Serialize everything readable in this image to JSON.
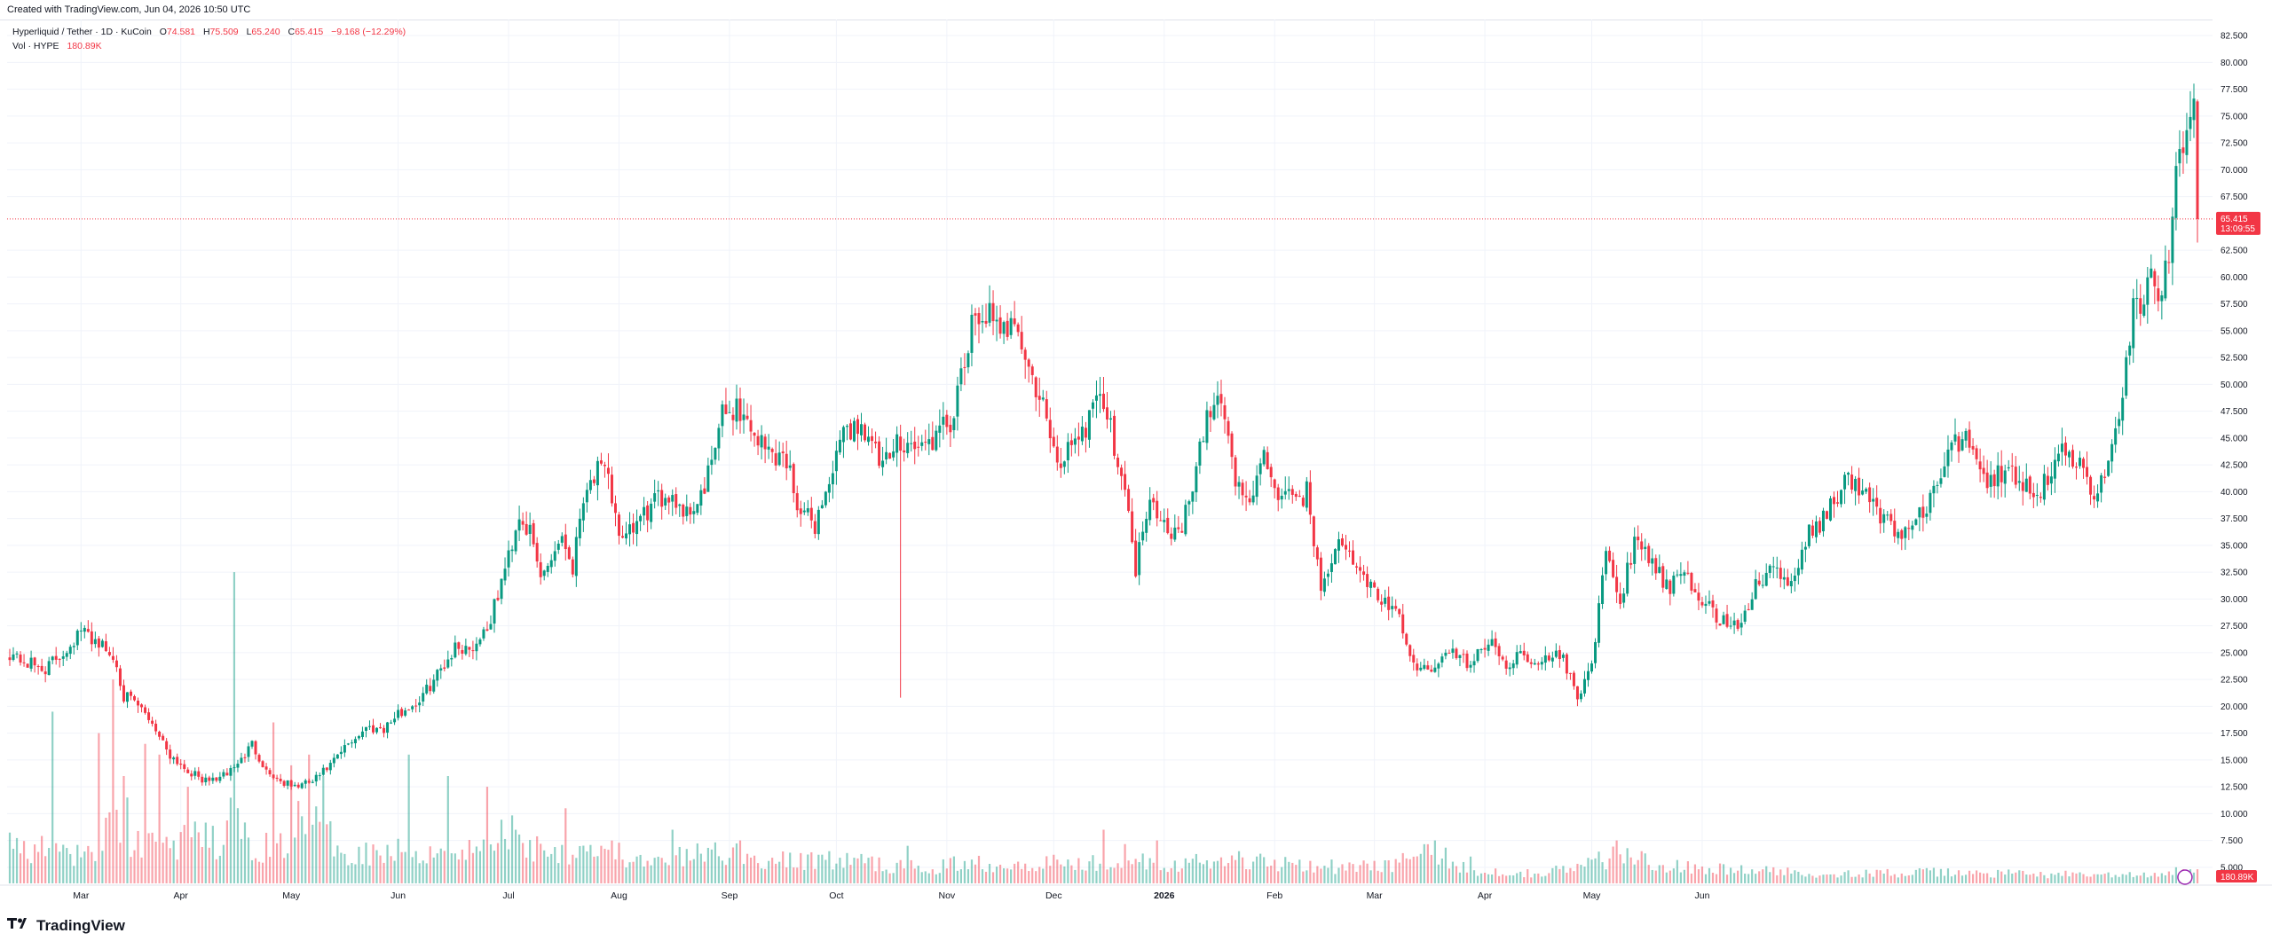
{
  "header": {
    "created": "Created with TradingView.com, Jun 04, 2026 10:50 UTC"
  },
  "legend": {
    "symbol": "Hyperliquid / Tether · 1D · KuCoin",
    "open_label": "O",
    "open": "74.581",
    "high_label": "H",
    "high": "75.509",
    "low_label": "L",
    "low": "65.240",
    "close_label": "C",
    "close": "65.415",
    "change": "−9.168 (−12.29%)",
    "volume_label": "Vol · HYPE",
    "volume": "180.89K"
  },
  "price_badge": {
    "price": "65.415",
    "countdown": "13:09:55"
  },
  "volume_badge": "180.89K",
  "footer": {
    "brand": "TradingView"
  },
  "colors": {
    "up": "#089981",
    "down": "#f23645",
    "grid": "#f0f3fa",
    "text": "#131722"
  },
  "chart_data": {
    "type": "candlestick",
    "title": "Hyperliquid / Tether · 1D · KuCoin",
    "ylim": [
      3.5,
      84
    ],
    "y_ticks": [
      "82.500",
      "80.000",
      "77.500",
      "75.000",
      "72.500",
      "70.000",
      "67.500",
      "62.500",
      "60.000",
      "57.500",
      "55.000",
      "52.500",
      "50.000",
      "47.500",
      "45.000",
      "42.500",
      "40.000",
      "37.500",
      "35.000",
      "32.500",
      "30.000",
      "27.500",
      "25.000",
      "22.500",
      "20.000",
      "17.500",
      "15.000",
      "12.500",
      "10.000",
      "7.500",
      "5.000"
    ],
    "x_ticks": [
      "Mar",
      "Apr",
      "May",
      "Jun",
      "Jul",
      "Aug",
      "Sep",
      "Oct",
      "Nov",
      "Dec",
      "2026",
      "Feb",
      "Mar",
      "Apr",
      "May",
      "Jun"
    ],
    "last_price": 65.415,
    "price_anchors": [
      [
        0,
        25
      ],
      [
        5,
        24
      ],
      [
        10,
        23.5
      ],
      [
        15,
        25
      ],
      [
        20,
        27
      ],
      [
        25,
        26
      ],
      [
        30,
        24
      ],
      [
        32,
        21
      ],
      [
        36,
        20
      ],
      [
        40,
        18.5
      ],
      [
        45,
        15.5
      ],
      [
        50,
        14
      ],
      [
        55,
        13
      ],
      [
        60,
        13.5
      ],
      [
        65,
        15
      ],
      [
        68,
        16.5
      ],
      [
        72,
        14
      ],
      [
        76,
        13
      ],
      [
        80,
        12.5
      ],
      [
        85,
        13
      ],
      [
        90,
        14.5
      ],
      [
        95,
        16.5
      ],
      [
        100,
        18
      ],
      [
        105,
        18
      ],
      [
        110,
        19.5
      ],
      [
        115,
        20.5
      ],
      [
        120,
        23
      ],
      [
        125,
        25.5
      ],
      [
        130,
        25.5
      ],
      [
        135,
        28
      ],
      [
        140,
        34
      ],
      [
        143,
        38
      ],
      [
        146,
        36
      ],
      [
        149,
        32
      ],
      [
        152,
        34
      ],
      [
        155,
        36
      ],
      [
        158,
        33
      ],
      [
        161,
        40
      ],
      [
        165,
        42
      ],
      [
        168,
        41
      ],
      [
        172,
        35
      ],
      [
        176,
        37
      ],
      [
        180,
        38.5
      ],
      [
        185,
        40
      ],
      [
        190,
        38
      ],
      [
        195,
        40
      ],
      [
        200,
        47
      ],
      [
        204,
        48
      ],
      [
        208,
        46
      ],
      [
        212,
        44
      ],
      [
        218,
        43
      ],
      [
        222,
        38
      ],
      [
        226,
        37
      ],
      [
        230,
        41
      ],
      [
        235,
        46
      ],
      [
        240,
        46
      ],
      [
        245,
        42
      ],
      [
        250,
        45
      ],
      [
        255,
        44
      ],
      [
        260,
        45
      ],
      [
        265,
        47
      ],
      [
        270,
        55
      ],
      [
        274,
        57
      ],
      [
        278,
        54
      ],
      [
        282,
        57
      ],
      [
        286,
        51
      ],
      [
        290,
        48
      ],
      [
        294,
        42
      ],
      [
        298,
        45
      ],
      [
        302,
        46
      ],
      [
        305,
        50
      ],
      [
        308,
        47
      ],
      [
        312,
        42
      ],
      [
        316,
        33
      ],
      [
        320,
        40
      ],
      [
        324,
        37
      ],
      [
        328,
        36
      ],
      [
        332,
        40
      ],
      [
        336,
        47
      ],
      [
        340,
        49
      ],
      [
        344,
        41
      ],
      [
        348,
        39
      ],
      [
        352,
        43
      ],
      [
        356,
        40
      ],
      [
        360,
        39
      ],
      [
        364,
        40
      ],
      [
        368,
        31
      ],
      [
        372,
        35
      ],
      [
        376,
        34
      ],
      [
        380,
        32
      ],
      [
        385,
        30
      ],
      [
        390,
        28
      ],
      [
        395,
        23
      ],
      [
        400,
        24
      ],
      [
        405,
        25
      ],
      [
        410,
        24
      ],
      [
        415,
        26
      ],
      [
        420,
        24
      ],
      [
        425,
        25
      ],
      [
        430,
        24
      ],
      [
        435,
        25
      ],
      [
        440,
        21
      ],
      [
        444,
        24
      ],
      [
        448,
        34
      ],
      [
        452,
        30
      ],
      [
        456,
        35
      ],
      [
        460,
        34
      ],
      [
        465,
        31
      ],
      [
        470,
        32
      ],
      [
        475,
        30
      ],
      [
        480,
        28
      ],
      [
        485,
        27.5
      ],
      [
        490,
        31
      ],
      [
        495,
        33
      ],
      [
        500,
        31
      ],
      [
        505,
        36
      ],
      [
        510,
        38
      ],
      [
        515,
        41
      ],
      [
        520,
        40
      ],
      [
        525,
        38
      ],
      [
        530,
        36
      ],
      [
        535,
        37
      ],
      [
        540,
        40
      ],
      [
        545,
        44
      ],
      [
        550,
        45
      ],
      [
        555,
        41
      ],
      [
        560,
        42
      ],
      [
        565,
        41
      ],
      [
        570,
        40
      ],
      [
        575,
        44
      ],
      [
        580,
        43
      ],
      [
        585,
        39
      ],
      [
        590,
        44
      ],
      [
        593,
        49
      ],
      [
        596,
        58
      ],
      [
        598,
        56
      ],
      [
        601,
        60
      ],
      [
        604,
        58
      ],
      [
        606,
        63
      ],
      [
        608,
        70
      ],
      [
        611,
        73
      ],
      [
        613,
        74.6
      ],
      [
        614,
        65.415
      ]
    ],
    "volume_profile": [
      [
        0,
        3.5
      ],
      [
        20,
        2.5
      ],
      [
        25,
        3.5
      ],
      [
        30,
        6
      ],
      [
        35,
        4
      ],
      [
        40,
        4
      ],
      [
        45,
        3.5
      ],
      [
        50,
        4
      ],
      [
        55,
        4
      ],
      [
        60,
        3.5
      ],
      [
        63,
        7
      ],
      [
        66,
        4
      ],
      [
        70,
        3.5
      ],
      [
        75,
        3
      ],
      [
        80,
        5.5
      ],
      [
        85,
        6
      ],
      [
        90,
        4
      ],
      [
        95,
        3
      ],
      [
        100,
        3
      ],
      [
        110,
        3
      ],
      [
        120,
        3
      ],
      [
        125,
        3.5
      ],
      [
        130,
        3
      ],
      [
        135,
        3.5
      ],
      [
        140,
        5
      ],
      [
        145,
        3.5
      ],
      [
        150,
        3.5
      ],
      [
        155,
        3
      ],
      [
        160,
        3.5
      ],
      [
        165,
        3.5
      ],
      [
        170,
        3
      ],
      [
        175,
        2
      ],
      [
        180,
        1.8
      ],
      [
        190,
        2.5
      ],
      [
        200,
        3
      ],
      [
        210,
        2.2
      ],
      [
        220,
        2
      ],
      [
        230,
        2.2
      ],
      [
        240,
        2
      ],
      [
        250,
        1.5
      ],
      [
        260,
        1.5
      ],
      [
        270,
        2
      ],
      [
        280,
        1.8
      ],
      [
        290,
        2
      ],
      [
        300,
        1.8
      ],
      [
        310,
        2.3
      ],
      [
        315,
        3
      ],
      [
        320,
        2
      ],
      [
        330,
        1.8
      ],
      [
        340,
        2.2
      ],
      [
        350,
        2
      ],
      [
        360,
        2
      ],
      [
        370,
        1.6
      ],
      [
        380,
        1.5
      ],
      [
        390,
        2
      ],
      [
        400,
        2.8
      ],
      [
        410,
        1.2
      ],
      [
        420,
        1
      ],
      [
        430,
        1
      ],
      [
        440,
        1.5
      ],
      [
        450,
        2.5
      ],
      [
        460,
        2.2
      ],
      [
        470,
        1.5
      ],
      [
        480,
        1.3
      ],
      [
        490,
        1.2
      ],
      [
        500,
        1
      ],
      [
        520,
        0.9
      ],
      [
        540,
        1
      ],
      [
        560,
        0.9
      ],
      [
        580,
        0.8
      ],
      [
        600,
        0.7
      ],
      [
        614,
        1
      ]
    ],
    "volume_spikes": [
      [
        12,
        16
      ],
      [
        25,
        14
      ],
      [
        29,
        19
      ],
      [
        32,
        10
      ],
      [
        33,
        8
      ],
      [
        38,
        13
      ],
      [
        42,
        12
      ],
      [
        50,
        9
      ],
      [
        63,
        29
      ],
      [
        74,
        15
      ],
      [
        79,
        11
      ],
      [
        84,
        12
      ],
      [
        88,
        10
      ],
      [
        112,
        12
      ],
      [
        123,
        10
      ],
      [
        134,
        9
      ],
      [
        156,
        7
      ],
      [
        186,
        5
      ],
      [
        205,
        4
      ],
      [
        230,
        3
      ],
      [
        252,
        3.5
      ],
      [
        307,
        5
      ],
      [
        322,
        4
      ],
      [
        345,
        3
      ],
      [
        400,
        4
      ],
      [
        410,
        2.5
      ],
      [
        451,
        4
      ],
      [
        458,
        3
      ],
      [
        608,
        1.5
      ]
    ],
    "note": "price_anchors are [day_index, approx close price]; volume values are shown in price-axis units for bar height reading"
  }
}
